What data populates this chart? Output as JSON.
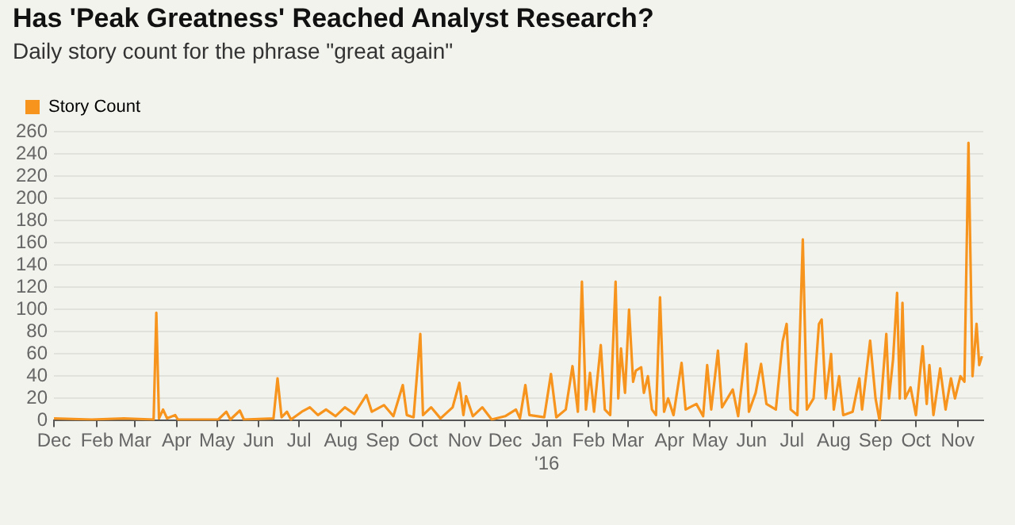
{
  "chart_data": {
    "type": "line",
    "title": "Has 'Peak Greatness' Reached Analyst Research?",
    "subtitle": "Daily story count for the phrase \"great again\"",
    "legend": "top left",
    "grid": "y",
    "marker": "none",
    "line_style": "solid",
    "xlim": [
      "2014-12-31",
      "2016-11-20"
    ],
    "xticks": [
      {
        "value": "2014-12-31",
        "label": "Dec"
      },
      {
        "value": "2015-02-01",
        "label": "Feb"
      },
      {
        "value": "2015-03-01",
        "label": "Mar"
      },
      {
        "value": "2015-04-01",
        "label": "Apr"
      },
      {
        "value": "2015-05-01",
        "label": "May"
      },
      {
        "value": "2015-06-01",
        "label": "Jun"
      },
      {
        "value": "2015-07-01",
        "label": "Jul"
      },
      {
        "value": "2015-08-01",
        "label": "Aug"
      },
      {
        "value": "2015-09-01",
        "label": "Sep"
      },
      {
        "value": "2015-10-01",
        "label": "Oct"
      },
      {
        "value": "2015-11-01",
        "label": "Nov"
      },
      {
        "value": "2015-12-01",
        "label": "Dec"
      },
      {
        "value": "2016-01-01",
        "label": "Jan\n'16"
      },
      {
        "value": "2016-02-01",
        "label": "Feb"
      },
      {
        "value": "2016-03-01",
        "label": "Mar"
      },
      {
        "value": "2016-04-01",
        "label": "Apr"
      },
      {
        "value": "2016-05-01",
        "label": "May"
      },
      {
        "value": "2016-06-01",
        "label": "Jun"
      },
      {
        "value": "2016-07-01",
        "label": "Jul"
      },
      {
        "value": "2016-08-01",
        "label": "Aug"
      },
      {
        "value": "2016-09-01",
        "label": "Sep"
      },
      {
        "value": "2016-10-01",
        "label": "Oct"
      },
      {
        "value": "2016-11-01",
        "label": "Nov"
      }
    ],
    "ylim": [
      0,
      260
    ],
    "yticks": [
      0,
      20,
      40,
      60,
      80,
      100,
      120,
      140,
      160,
      180,
      200,
      220,
      240,
      260
    ],
    "x": [
      "2014-12-31",
      "2015-01-28",
      "2015-02-21",
      "2015-03-15",
      "2015-03-17",
      "2015-03-19",
      "2015-03-22",
      "2015-03-25",
      "2015-03-31",
      "2015-04-02",
      "2015-05-02",
      "2015-05-08",
      "2015-05-11",
      "2015-05-18",
      "2015-05-21",
      "2015-06-12",
      "2015-06-15",
      "2015-06-18",
      "2015-06-22",
      "2015-06-25",
      "2015-07-03",
      "2015-07-09",
      "2015-07-15",
      "2015-07-21",
      "2015-07-28",
      "2015-08-04",
      "2015-08-11",
      "2015-08-20",
      "2015-08-24",
      "2015-09-02",
      "2015-09-09",
      "2015-09-16",
      "2015-09-19",
      "2015-09-24",
      "2015-09-29",
      "2015-10-01",
      "2015-10-07",
      "2015-10-14",
      "2015-10-23",
      "2015-10-28",
      "2015-10-31",
      "2015-11-02",
      "2015-11-07",
      "2015-11-14",
      "2015-11-21",
      "2015-12-01",
      "2015-12-09",
      "2015-12-12",
      "2015-12-16",
      "2015-12-19",
      "2015-12-30",
      "2016-01-04",
      "2016-01-08",
      "2016-01-15",
      "2016-01-20",
      "2016-01-24",
      "2016-01-27",
      "2016-01-30",
      "2016-02-02",
      "2016-02-05",
      "2016-02-10",
      "2016-02-13",
      "2016-02-17",
      "2016-02-21",
      "2016-02-23",
      "2016-02-25",
      "2016-02-28",
      "2016-03-02",
      "2016-03-05",
      "2016-03-07",
      "2016-03-11",
      "2016-03-13",
      "2016-03-16",
      "2016-03-19",
      "2016-03-22",
      "2016-03-25",
      "2016-03-28",
      "2016-03-31",
      "2016-04-04",
      "2016-04-10",
      "2016-04-13",
      "2016-04-21",
      "2016-04-26",
      "2016-04-29",
      "2016-05-02",
      "2016-05-07",
      "2016-05-10",
      "2016-05-18",
      "2016-05-22",
      "2016-05-28",
      "2016-05-30",
      "2016-06-04",
      "2016-06-08",
      "2016-06-12",
      "2016-06-19",
      "2016-06-24",
      "2016-06-27",
      "2016-06-30",
      "2016-07-05",
      "2016-07-09",
      "2016-07-12",
      "2016-07-17",
      "2016-07-21",
      "2016-07-23",
      "2016-07-26",
      "2016-07-30",
      "2016-08-01",
      "2016-08-05",
      "2016-08-08",
      "2016-08-15",
      "2016-08-20",
      "2016-08-22",
      "2016-08-28",
      "2016-09-01",
      "2016-09-04",
      "2016-09-09",
      "2016-09-11",
      "2016-09-14",
      "2016-09-17",
      "2016-09-19",
      "2016-09-21",
      "2016-09-23",
      "2016-09-27",
      "2016-10-01",
      "2016-10-06",
      "2016-10-09",
      "2016-10-11",
      "2016-10-14",
      "2016-10-19",
      "2016-10-23",
      "2016-10-27",
      "2016-10-30",
      "2016-11-03",
      "2016-11-06",
      "2016-11-09",
      "2016-11-12",
      "2016-11-15",
      "2016-11-17",
      "2016-11-19"
    ],
    "series": [
      {
        "name": "Story Count",
        "color": "#f7941d",
        "values": [
          2,
          1,
          2,
          1,
          97,
          2,
          10,
          2,
          5,
          1,
          1,
          8,
          1,
          9,
          1,
          2,
          38,
          3,
          8,
          1,
          8,
          12,
          5,
          10,
          4,
          12,
          6,
          23,
          8,
          14,
          4,
          32,
          5,
          3,
          78,
          5,
          12,
          2,
          12,
          34,
          5,
          22,
          4,
          12,
          1,
          4,
          10,
          2,
          32,
          5,
          3,
          42,
          3,
          10,
          49,
          8,
          125,
          10,
          43,
          8,
          68,
          10,
          5,
          125,
          20,
          65,
          25,
          100,
          35,
          45,
          48,
          25,
          40,
          10,
          5,
          111,
          8,
          20,
          5,
          52,
          10,
          15,
          4,
          50,
          10,
          63,
          12,
          28,
          4,
          69,
          8,
          25,
          51,
          15,
          10,
          71,
          87,
          10,
          5,
          163,
          10,
          20,
          87,
          91,
          20,
          60,
          10,
          40,
          5,
          8,
          38,
          10,
          72,
          20,
          0,
          78,
          20,
          55,
          115,
          20,
          106,
          20,
          30,
          5,
          67,
          15,
          50,
          5,
          47,
          10,
          38,
          20,
          40,
          35,
          250,
          40,
          87,
          50,
          58
        ]
      }
    ]
  }
}
